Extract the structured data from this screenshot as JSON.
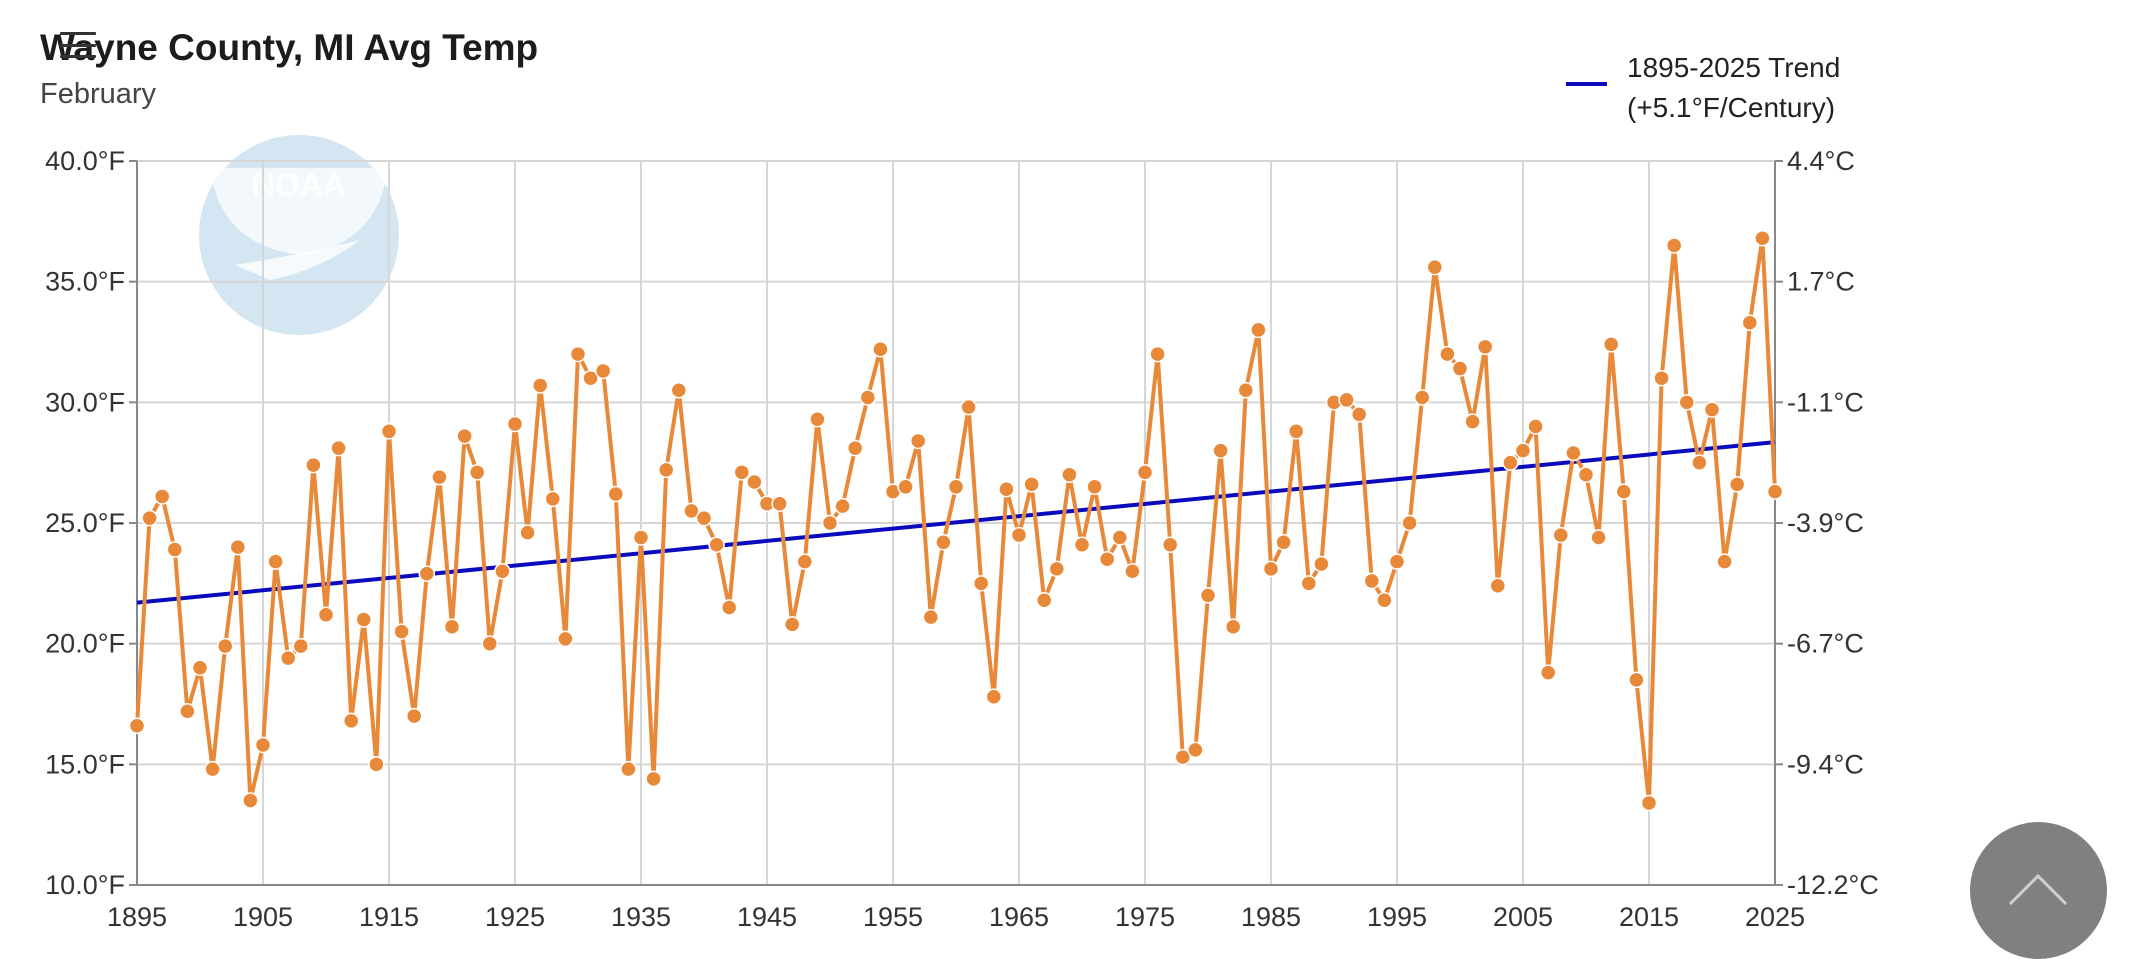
{
  "header": {
    "title": "Wayne County, MI Avg Temp",
    "subtitle": "February"
  },
  "legend": {
    "line1": "1895-2025 Trend",
    "line2": "(+5.1°F/Century)",
    "position": "top-right"
  },
  "icons": {
    "menu": "hamburger-menu-icon",
    "watermark": "noaa-logo",
    "scroll": "chevron-up-icon"
  },
  "colors": {
    "series": "#E8893A",
    "trend": "#0A0ABE",
    "grid": "#D6D6D6",
    "watermark": "#D5E6F3",
    "scroll_button": "#808080"
  },
  "chart_data": {
    "type": "line",
    "title": "Wayne County, MI Avg Temp",
    "subtitle": "February",
    "xlim": [
      1895,
      2025
    ],
    "ylim": [
      10,
      40
    ],
    "x_ticks": [
      "1895",
      "1905",
      "1915",
      "1925",
      "1935",
      "1945",
      "1955",
      "1965",
      "1975",
      "1985",
      "1995",
      "2005",
      "2015",
      "2025"
    ],
    "y_ticks_left": [
      "10.0°F",
      "15.0°F",
      "20.0°F",
      "25.0°F",
      "30.0°F",
      "35.0°F",
      "40.0°F"
    ],
    "y_ticks_right": [
      "-12.2°C",
      "-9.4°C",
      "-6.7°C",
      "-3.9°C",
      "-1.1°C",
      "1.7°C",
      "4.4°C"
    ],
    "grid": true,
    "series": [
      {
        "name": "",
        "x_start": 1895,
        "values": [
          16.6,
          25.2,
          26.1,
          23.9,
          17.2,
          19.0,
          14.8,
          19.9,
          24.0,
          13.5,
          15.8,
          23.4,
          19.4,
          19.9,
          27.4,
          21.2,
          28.1,
          16.8,
          21.0,
          15.0,
          28.8,
          20.5,
          17.0,
          22.9,
          26.9,
          20.7,
          28.6,
          27.1,
          20.0,
          23.0,
          29.1,
          24.6,
          30.7,
          26.0,
          20.2,
          32.0,
          31.0,
          31.3,
          26.2,
          14.8,
          24.4,
          14.4,
          27.2,
          30.5,
          25.5,
          25.2,
          24.1,
          21.5,
          27.1,
          26.7,
          25.8,
          25.8,
          20.8,
          23.4,
          29.3,
          25.0,
          25.7,
          28.1,
          30.2,
          32.2,
          26.3,
          26.5,
          28.4,
          21.1,
          24.2,
          26.5,
          29.8,
          22.5,
          17.8,
          26.4,
          24.5,
          26.6,
          21.8,
          23.1,
          27.0,
          24.1,
          26.5,
          23.5,
          24.4,
          23.0,
          27.1,
          32.0,
          24.1,
          15.3,
          15.6,
          22.0,
          28.0,
          20.7,
          30.5,
          33.0,
          23.1,
          24.2,
          28.8,
          22.5,
          23.3,
          30.0,
          30.1,
          29.5,
          22.6,
          21.8,
          23.4,
          25.0,
          30.2,
          35.6,
          32.0,
          31.4,
          29.2,
          32.3,
          22.4,
          27.5,
          28.0,
          29.0,
          18.8,
          24.5,
          27.9,
          27.0,
          24.4,
          32.4,
          26.3,
          18.5,
          13.4,
          31.0,
          36.5,
          30.0,
          27.5,
          29.7,
          23.4,
          26.6,
          33.3,
          36.8,
          26.3
        ]
      },
      {
        "name": "1895-2025 Trend",
        "x": [
          1895,
          2025
        ],
        "values": [
          21.7,
          28.35
        ]
      }
    ]
  }
}
